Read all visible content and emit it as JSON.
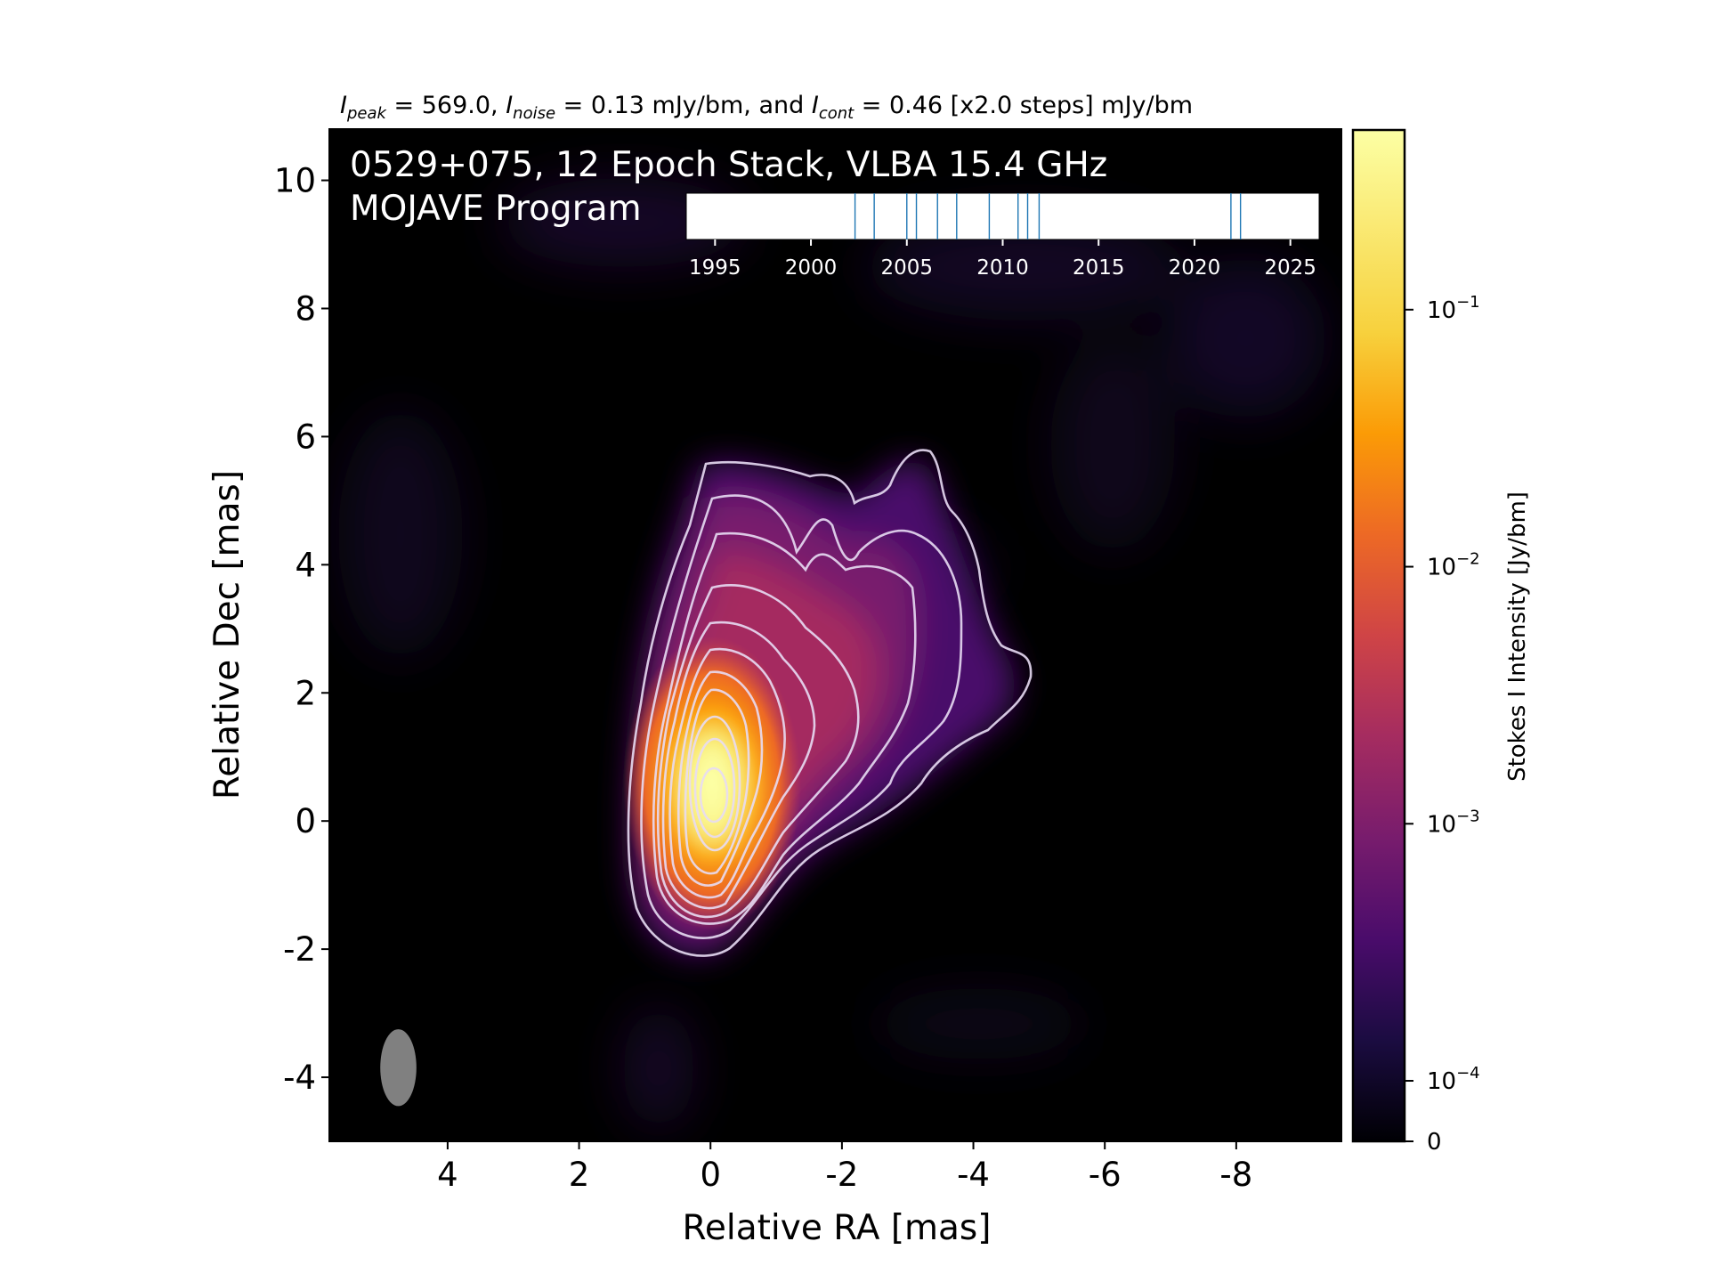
{
  "chart_data": {
    "type": "heatmap",
    "title": {
      "peak_sym": "I",
      "peak_sub": "peak",
      "peak_val": " = 569.0, ",
      "noise_sym": "I",
      "noise_sub": "noise",
      "noise_val": " = 0.13 mJy/bm, and ",
      "cont_sym": "I",
      "cont_sub": "cont",
      "cont_val": " = 0.46 [x2.0 steps] mJy/bm"
    },
    "annotation": {
      "line1": "0529+075, 12 Epoch Stack, VLBA 15.4 GHz",
      "line2": "MOJAVE Program"
    },
    "xlabel": "Relative RA [mas]",
    "ylabel": "Relative Dec [mas]",
    "xlim": [
      5.8,
      -9.6
    ],
    "ylim": [
      -5.0,
      10.8
    ],
    "xticks": [
      4,
      2,
      0,
      -2,
      -4,
      -6,
      -8
    ],
    "yticks": [
      10,
      8,
      6,
      4,
      2,
      0,
      -2,
      -4
    ],
    "colorbar": {
      "label": "Stokes I Intensity [Jy/bm]",
      "ticks": [
        {
          "value": 0.1,
          "base": "10",
          "exp": "−1"
        },
        {
          "value": 0.01,
          "base": "10",
          "exp": "−2"
        },
        {
          "value": 0.001,
          "base": "10",
          "exp": "−3"
        },
        {
          "value": 0.0001,
          "base": "10",
          "exp": "−4"
        },
        {
          "value": 0,
          "base": "0",
          "exp": ""
        }
      ],
      "colormap": "inferno"
    },
    "contours": {
      "base_mjy": 0.46,
      "step_factor": 2.0,
      "levels": 11
    },
    "beam": {
      "center": [
        4.75,
        -3.85
      ],
      "major_mas": 1.2,
      "minor_mas": 0.55,
      "pa_deg": 0
    },
    "epoch_timeline": {
      "xlim": [
        1993.5,
        2026.5
      ],
      "ticks": [
        "1995",
        "2000",
        "2005",
        "2010",
        "2015",
        "2020",
        "2025"
      ],
      "epochs": [
        2002.3,
        2003.3,
        2005.0,
        2005.5,
        2006.6,
        2007.6,
        2009.3,
        2010.8,
        2011.3,
        2011.9,
        2021.9,
        2022.4
      ]
    }
  },
  "colors": {
    "background": "#000000",
    "contour": "#e8dcf4",
    "beam": "#808080",
    "epoch_line": "#1f77b4"
  }
}
